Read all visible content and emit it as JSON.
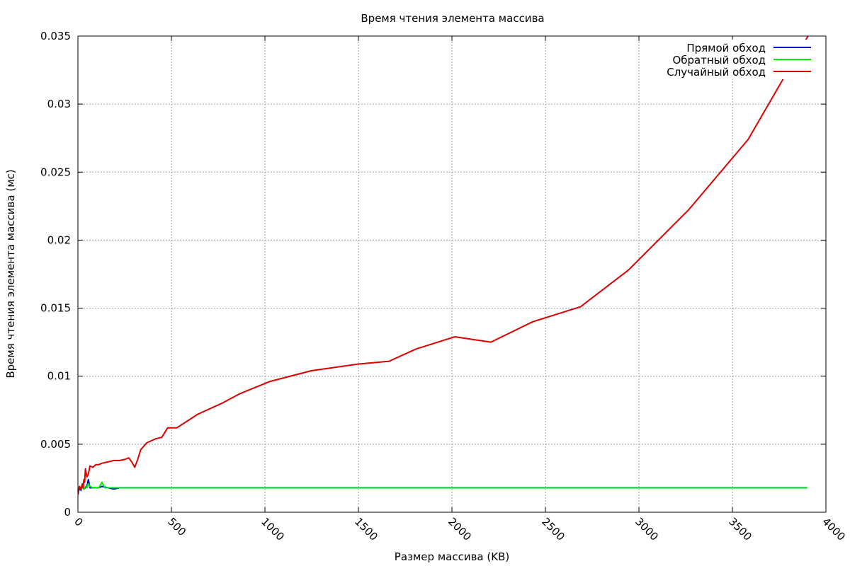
{
  "chart_data": {
    "type": "line",
    "title": "Время чтения элемента массива",
    "xlabel": "Размер массива (KB)",
    "ylabel": "Время чтения элемента массива (мс)",
    "xlim": [
      0,
      4000
    ],
    "ylim": [
      0,
      0.035
    ],
    "xticks": [
      0,
      500,
      1000,
      1500,
      2000,
      2500,
      3000,
      3500,
      4000
    ],
    "yticks": [
      0,
      0.005,
      0.01,
      0.015,
      0.02,
      0.025,
      0.03,
      0.035
    ],
    "xtick_labels": [
      "0",
      "500",
      "1000",
      "1500",
      "2000",
      "2500",
      "3000",
      "3500",
      "4000"
    ],
    "ytick_labels": [
      "0",
      "0.005",
      "0.01",
      "0.015",
      "0.02",
      "0.025",
      "0.03",
      "0.035"
    ],
    "grid": true,
    "legend_position": "top-right",
    "series": [
      {
        "name": "Прямой обход",
        "color": "#0000cc",
        "points": [
          [
            0,
            0.0013
          ],
          [
            8,
            0.0018
          ],
          [
            16,
            0.0016
          ],
          [
            24,
            0.0019
          ],
          [
            32,
            0.0017
          ],
          [
            40,
            0.0018
          ],
          [
            48,
            0.0019
          ],
          [
            56,
            0.0024
          ],
          [
            64,
            0.0018
          ],
          [
            80,
            0.0018
          ],
          [
            96,
            0.0018
          ],
          [
            112,
            0.0018
          ],
          [
            128,
            0.0019
          ],
          [
            160,
            0.0018
          ],
          [
            192,
            0.0017
          ],
          [
            224,
            0.0018
          ],
          [
            256,
            0.0018
          ],
          [
            288,
            0.0018
          ],
          [
            320,
            0.0018
          ],
          [
            512,
            0.0018
          ],
          [
            1000,
            0.0018
          ],
          [
            1500,
            0.0018
          ],
          [
            2000,
            0.0018
          ],
          [
            2500,
            0.0018
          ],
          [
            3000,
            0.0018
          ],
          [
            3500,
            0.0018
          ],
          [
            3900,
            0.0018
          ]
        ]
      },
      {
        "name": "Обратный обход",
        "color": "#00ee00",
        "points": [
          [
            0,
            0.0013
          ],
          [
            8,
            0.0019
          ],
          [
            16,
            0.0017
          ],
          [
            24,
            0.0018
          ],
          [
            32,
            0.0017
          ],
          [
            40,
            0.0019
          ],
          [
            48,
            0.0018
          ],
          [
            56,
            0.0021
          ],
          [
            64,
            0.0019
          ],
          [
            80,
            0.0018
          ],
          [
            96,
            0.0018
          ],
          [
            112,
            0.0018
          ],
          [
            128,
            0.0022
          ],
          [
            144,
            0.0018
          ],
          [
            160,
            0.0018
          ],
          [
            192,
            0.0018
          ],
          [
            224,
            0.0018
          ],
          [
            256,
            0.0018
          ],
          [
            320,
            0.0018
          ],
          [
            512,
            0.0018
          ],
          [
            1000,
            0.0018
          ],
          [
            1500,
            0.0018
          ],
          [
            2000,
            0.0018
          ],
          [
            2500,
            0.0018
          ],
          [
            3000,
            0.0018
          ],
          [
            3500,
            0.0018
          ],
          [
            3900,
            0.0018
          ]
        ]
      },
      {
        "name": "Случайный обход",
        "color": "#dd0000",
        "points": [
          [
            0,
            0.0013
          ],
          [
            8,
            0.0019
          ],
          [
            16,
            0.0017
          ],
          [
            24,
            0.0021
          ],
          [
            28,
            0.0018
          ],
          [
            32,
            0.0024
          ],
          [
            36,
            0.0022
          ],
          [
            40,
            0.0032
          ],
          [
            48,
            0.0026
          ],
          [
            56,
            0.0028
          ],
          [
            64,
            0.0034
          ],
          [
            80,
            0.0033
          ],
          [
            96,
            0.0035
          ],
          [
            112,
            0.0035
          ],
          [
            128,
            0.0036
          ],
          [
            160,
            0.0037
          ],
          [
            192,
            0.0038
          ],
          [
            224,
            0.0038
          ],
          [
            256,
            0.0039
          ],
          [
            272,
            0.004
          ],
          [
            288,
            0.0037
          ],
          [
            304,
            0.0033
          ],
          [
            320,
            0.0039
          ],
          [
            336,
            0.0046
          ],
          [
            368,
            0.0051
          ],
          [
            416,
            0.0054
          ],
          [
            448,
            0.0055
          ],
          [
            480,
            0.0062
          ],
          [
            528,
            0.0062
          ],
          [
            640,
            0.0072
          ],
          [
            768,
            0.008
          ],
          [
            864,
            0.0087
          ],
          [
            1024,
            0.0096
          ],
          [
            1248,
            0.0104
          ],
          [
            1504,
            0.0109
          ],
          [
            1664,
            0.0111
          ],
          [
            1808,
            0.012
          ],
          [
            2016,
            0.0129
          ],
          [
            2208,
            0.0125
          ],
          [
            2432,
            0.014
          ],
          [
            2688,
            0.0151
          ],
          [
            2944,
            0.0178
          ],
          [
            3264,
            0.0222
          ],
          [
            3584,
            0.0274
          ],
          [
            3904,
            0.035
          ]
        ]
      }
    ]
  }
}
